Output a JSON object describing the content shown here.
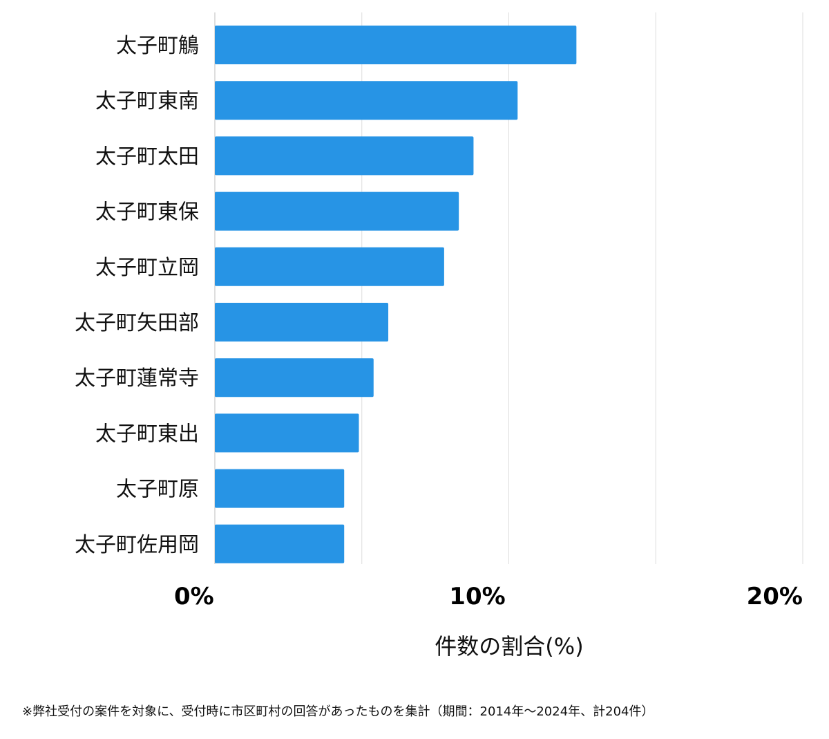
{
  "chart_data": {
    "type": "bar",
    "orientation": "horizontal",
    "categories": [
      "太子町鵤",
      "太子町東南",
      "太子町太田",
      "太子町東保",
      "太子町立岡",
      "太子町矢田部",
      "太子町蓮常寺",
      "太子町東出",
      "太子町原",
      "太子町佐用岡"
    ],
    "values": [
      12.3,
      10.3,
      8.8,
      8.3,
      7.8,
      5.9,
      5.4,
      4.9,
      4.4,
      4.4
    ],
    "xlim": [
      0,
      20
    ],
    "xticks": [
      0,
      10,
      20
    ],
    "xtick_labels": [
      "0%",
      "10%",
      "20%"
    ],
    "gridlines": [
      0,
      5,
      10,
      15,
      20
    ],
    "xlabel": "件数の割合(%)",
    "ylabel": "",
    "title": "",
    "bar_color": "#2794e5",
    "grid": true
  },
  "footnote": "※弊社受付の案件を対象に、受付時に市区町村の回答があったものを集計（期間：2014年〜2024年、計204件）"
}
